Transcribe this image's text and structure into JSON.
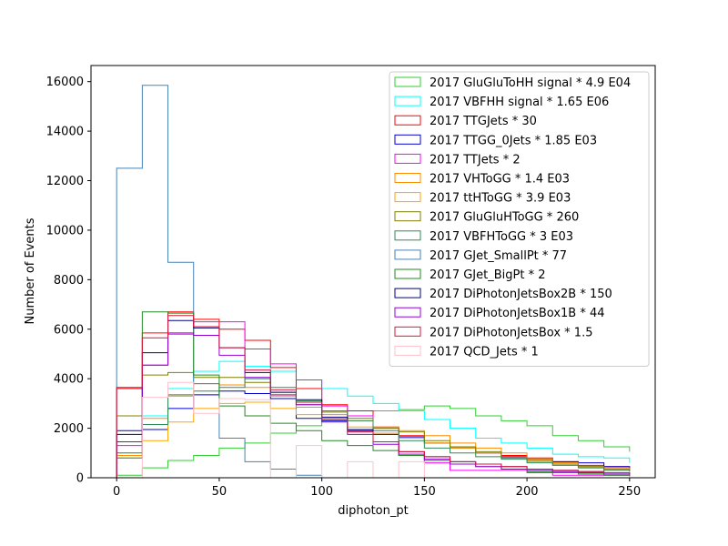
{
  "chart_data": {
    "type": "step-histogram",
    "title": "",
    "xlabel": "diphoton_pt",
    "ylabel": "Number of Events",
    "xlim": [
      -12.5,
      262.5
    ],
    "ylim": [
      0,
      16650
    ],
    "x_ticks": [
      0,
      50,
      100,
      150,
      200,
      250
    ],
    "y_ticks": [
      0,
      2000,
      4000,
      6000,
      8000,
      10000,
      12000,
      14000,
      16000
    ],
    "grid": false,
    "legend_position": "upper-right",
    "bin_edges": [
      0,
      12.5,
      25,
      37.5,
      50,
      62.5,
      75,
      87.5,
      100,
      112.5,
      125,
      137.5,
      150,
      162.5,
      175,
      187.5,
      200,
      212.5,
      225,
      237.5,
      250
    ],
    "series": [
      {
        "name": "2017 GluGluToHH signal * 4.9 E04",
        "color": "#32cd32",
        "values": [
          100,
          400,
          700,
          900,
          1200,
          1400,
          1800,
          2100,
          2400,
          2500,
          2700,
          2750,
          2900,
          2800,
          2500,
          2300,
          2100,
          1700,
          1500,
          1250,
          1050
        ]
      },
      {
        "name": "2017 VBFHH signal * 1.65 E06",
        "color": "#00ffff",
        "values": [
          900,
          2500,
          3600,
          4300,
          4700,
          4500,
          4300,
          3950,
          3600,
          3300,
          3000,
          2700,
          2350,
          2000,
          1600,
          1400,
          1200,
          950,
          850,
          800,
          600
        ]
      },
      {
        "name": "2017 TTGJets * 30",
        "color": "#ff0000",
        "values": [
          3600,
          5850,
          6700,
          6400,
          6000,
          5550,
          4450,
          3600,
          2950,
          2700,
          2050,
          1700,
          1400,
          1200,
          1000,
          900,
          800,
          650,
          500,
          450,
          300
        ]
      },
      {
        "name": "2017 TTGG_0Jets * 1.85 E03",
        "color": "#0000cd",
        "values": [
          1900,
          1950,
          2800,
          3350,
          3500,
          3400,
          3200,
          2400,
          2300,
          1900,
          1750,
          1650,
          1400,
          1200,
          1000,
          850,
          750,
          650,
          600,
          450,
          350
        ]
      },
      {
        "name": "2017 TTJets * 2",
        "color": "#ff00ff",
        "values": [
          1300,
          4550,
          5800,
          6300,
          6300,
          5200,
          4600,
          3950,
          2900,
          2500,
          2000,
          900,
          600,
          300,
          300,
          300,
          200,
          100,
          100,
          100,
          50
        ]
      },
      {
        "name": "2017 VHToGG * 1.4 E03",
        "color": "#ff8c00",
        "values": [
          900,
          2400,
          3300,
          3800,
          3750,
          3650,
          3300,
          2850,
          2550,
          2300,
          2050,
          1900,
          1700,
          1400,
          1200,
          1000,
          750,
          600,
          450,
          400,
          250
        ]
      },
      {
        "name": "2017 ttHToGG * 3.9 E03",
        "color": "#ffa500",
        "values": [
          800,
          1500,
          2250,
          2800,
          3000,
          3050,
          2800,
          2550,
          2350,
          2050,
          1800,
          1600,
          1400,
          1200,
          1000,
          800,
          650,
          550,
          400,
          300,
          250
        ]
      },
      {
        "name": "2017 GluGluHToGG * 260",
        "color": "#808000",
        "values": [
          2500,
          4150,
          4250,
          4050,
          4050,
          3850,
          3450,
          2950,
          2650,
          2400,
          2000,
          1850,
          1500,
          1250,
          1050,
          800,
          700,
          550,
          450,
          350,
          300
        ]
      },
      {
        "name": "2017 VBFHToGG * 3 E03",
        "color": "#2e8b57",
        "values": [
          800,
          2150,
          3350,
          3500,
          3650,
          4000,
          3650,
          3100,
          2700,
          2300,
          1900,
          1500,
          1200,
          1000,
          850,
          750,
          600,
          500,
          400,
          300,
          250
        ]
      },
      {
        "name": "2017 GJet_SmallPt * 77",
        "color": "#4682b4",
        "values": [
          12500,
          15850,
          8700,
          3800,
          1600,
          650,
          350,
          100,
          0,
          0,
          0,
          0,
          0,
          0,
          0,
          0,
          0,
          0,
          0,
          0,
          0
        ]
      },
      {
        "name": "2017 GJet_BigPt * 2",
        "color": "#228b22",
        "values": [
          1000,
          6700,
          6650,
          4150,
          2900,
          2500,
          2200,
          1900,
          1500,
          1300,
          1100,
          900,
          700,
          550,
          450,
          350,
          250,
          200,
          150,
          100,
          80
        ]
      },
      {
        "name": "2017 DiPhotonJetsBox2B * 150",
        "color": "#000080",
        "values": [
          1750,
          5050,
          6350,
          6050,
          5250,
          4250,
          3450,
          3150,
          2450,
          1950,
          1450,
          1050,
          850,
          650,
          550,
          450,
          350,
          300,
          250,
          200,
          150
        ]
      },
      {
        "name": "2017 DiPhotonJetsBox1B * 44",
        "color": "#9400d3",
        "values": [
          1450,
          4550,
          5850,
          5750,
          4950,
          4050,
          3350,
          2950,
          2250,
          1750,
          1350,
          950,
          750,
          550,
          450,
          350,
          300,
          250,
          200,
          150,
          100
        ]
      },
      {
        "name": "2017 DiPhotonJetsBox * 1.5",
        "color": "#dc143c",
        "values": [
          3650,
          5650,
          6550,
          6100,
          5250,
          4350,
          3550,
          3050,
          2350,
          1850,
          1450,
          1050,
          850,
          650,
          550,
          450,
          350,
          300,
          250,
          200,
          150
        ]
      },
      {
        "name": "2017 QCD_Jets * 1",
        "color": "#ffc0cb",
        "values": [
          0,
          3250,
          3850,
          2600,
          3200,
          3150,
          0,
          1300,
          0,
          650,
          0,
          650,
          0,
          0,
          0,
          0,
          0,
          0,
          0,
          0,
          0
        ]
      }
    ]
  }
}
